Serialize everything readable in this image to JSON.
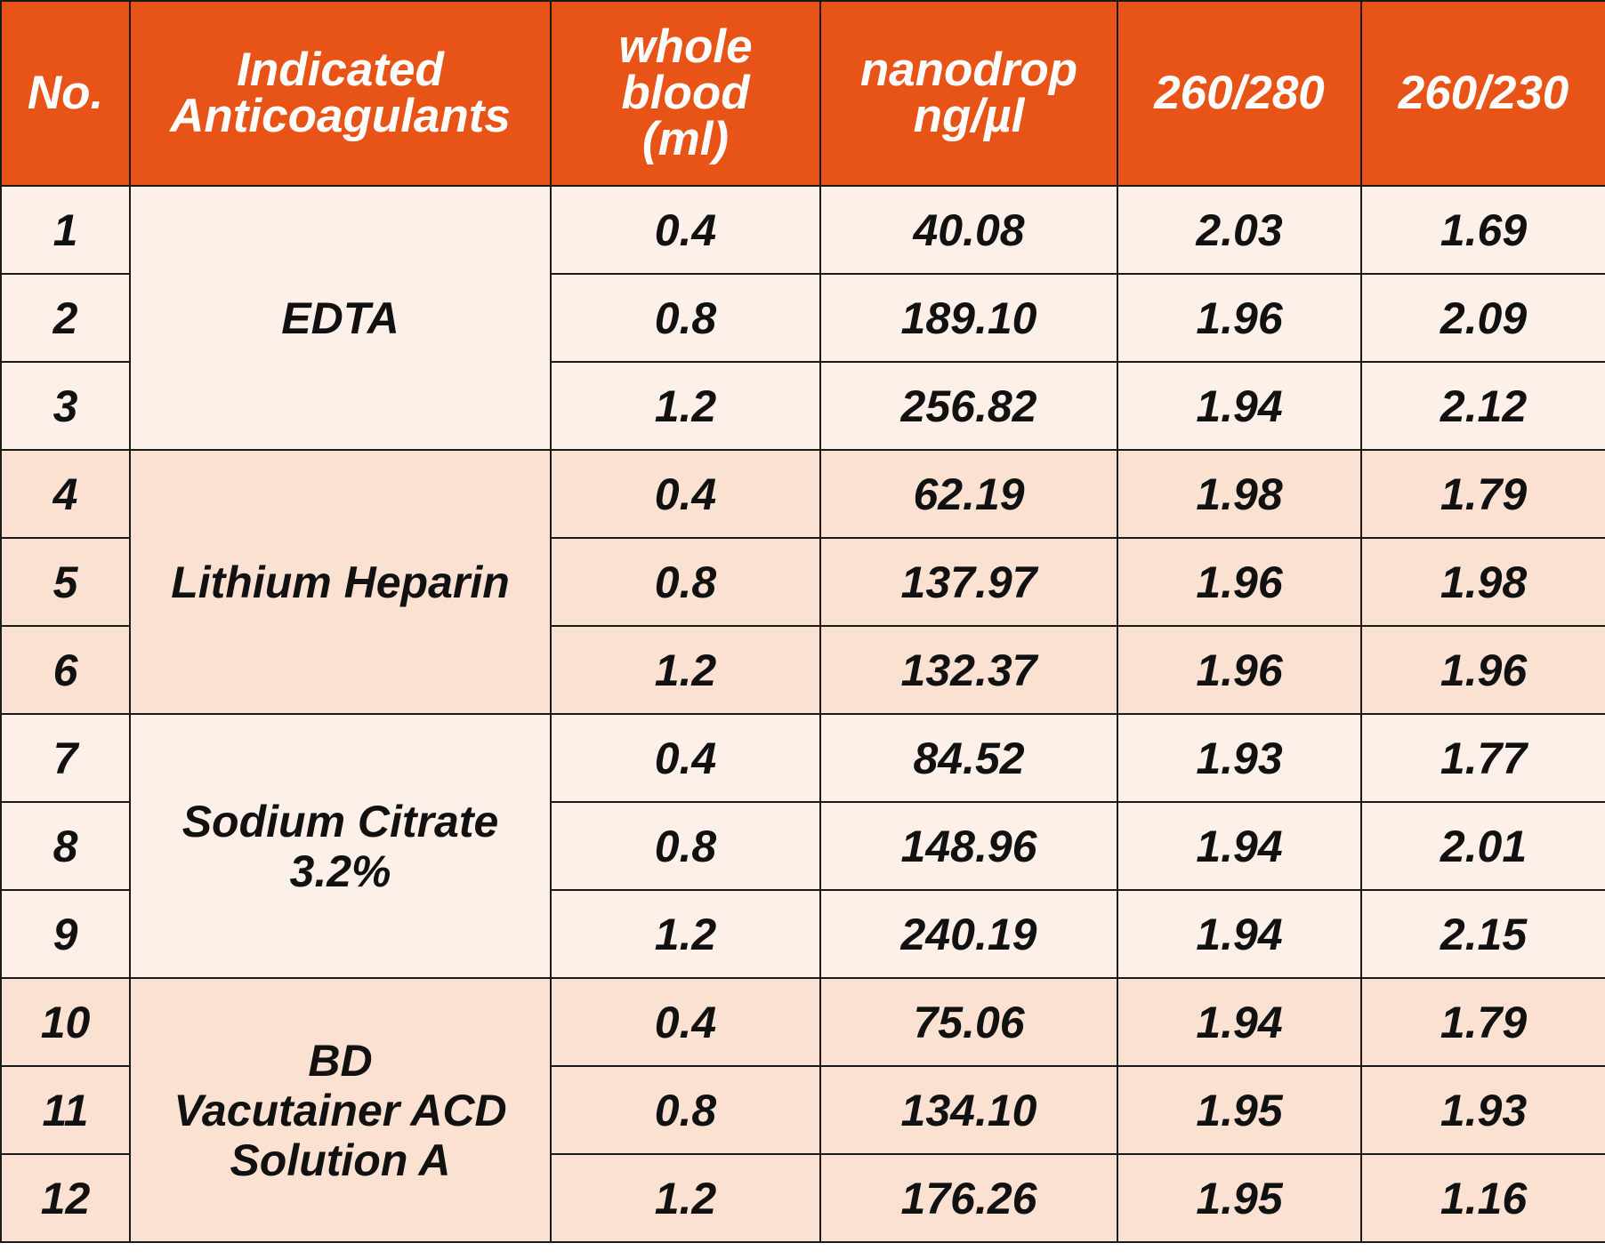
{
  "header": {
    "no": "No.",
    "anticoagulants": [
      "Indicated",
      "Anticoagulants"
    ],
    "whole_blood": [
      "whole",
      "blood",
      "(ml)"
    ],
    "nanodrop": [
      "nanodrop",
      "ng/µl"
    ],
    "ratio_280": "260/280",
    "ratio_230": "260/230"
  },
  "groups": [
    {
      "anticoagulant": [
        "EDTA"
      ],
      "rows": [
        {
          "no": "1",
          "blood": "0.4",
          "nanodrop": "40.08",
          "r280": "2.03",
          "r230": "1.69"
        },
        {
          "no": "2",
          "blood": "0.8",
          "nanodrop": "189.10",
          "r280": "1.96",
          "r230": "2.09"
        },
        {
          "no": "3",
          "blood": "1.2",
          "nanodrop": "256.82",
          "r280": "1.94",
          "r230": "2.12"
        }
      ]
    },
    {
      "anticoagulant": [
        "Lithium Heparin"
      ],
      "rows": [
        {
          "no": "4",
          "blood": "0.4",
          "nanodrop": "62.19",
          "r280": "1.98",
          "r230": "1.79"
        },
        {
          "no": "5",
          "blood": "0.8",
          "nanodrop": "137.97",
          "r280": "1.96",
          "r230": "1.98"
        },
        {
          "no": "6",
          "blood": "1.2",
          "nanodrop": "132.37",
          "r280": "1.96",
          "r230": "1.96"
        }
      ]
    },
    {
      "anticoagulant": [
        "Sodium Citrate",
        "3.2%"
      ],
      "rows": [
        {
          "no": "7",
          "blood": "0.4",
          "nanodrop": "84.52",
          "r280": "1.93",
          "r230": "1.77"
        },
        {
          "no": "8",
          "blood": "0.8",
          "nanodrop": "148.96",
          "r280": "1.94",
          "r230": "2.01"
        },
        {
          "no": "9",
          "blood": "1.2",
          "nanodrop": "240.19",
          "r280": "1.94",
          "r230": "2.15"
        }
      ]
    },
    {
      "anticoagulant": [
        "BD",
        "Vacutainer ACD",
        "Solution A"
      ],
      "rows": [
        {
          "no": "10",
          "blood": "0.4",
          "nanodrop": "75.06",
          "r280": "1.94",
          "r230": "1.79"
        },
        {
          "no": "11",
          "blood": "0.8",
          "nanodrop": "134.10",
          "r280": "1.95",
          "r230": "1.93"
        },
        {
          "no": "12",
          "blood": "1.2",
          "nanodrop": "176.26",
          "r280": "1.95",
          "r230": "1.16"
        }
      ]
    }
  ],
  "colors": {
    "header_bg": "#e85418",
    "row_light": "#fdf0e8",
    "row_dark": "#fbe1d2"
  }
}
